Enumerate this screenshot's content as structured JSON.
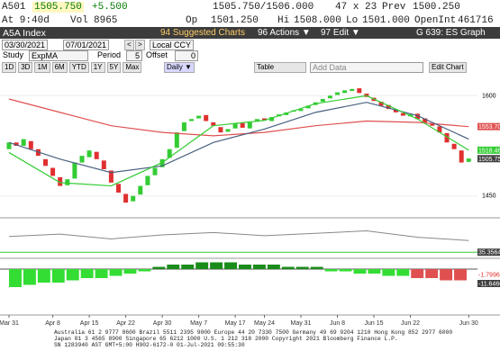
{
  "header": {
    "ticker": "A501",
    "last": "1505.750",
    "change": "+5.500",
    "vol_label": "Vol",
    "vol": "8965",
    "bid_ask": "1505.750/1506.000",
    "size": "47 x 23",
    "prev_label": "Prev",
    "prev": "1500.250",
    "time": "At 9:40d",
    "op_label": "Op",
    "op": "1501.250",
    "hi_label": "Hi",
    "hi": "1508.000",
    "lo_label": "Lo",
    "lo": "1501.000",
    "oi_label": "OpenInt",
    "oi": "461716"
  },
  "menu": {
    "security": "A5A Index",
    "suggested": "94 Suggested Charts",
    "actions": "96 Actions ▼",
    "edit": "97 Edit ▼",
    "graph": "G 639: ES Graph"
  },
  "controls": {
    "start": "03/30/2021",
    "end": "07/01/2021",
    "prev": "<",
    "next": ">",
    "currency": "Local CCY",
    "study_label": "Study",
    "study": "ExpMA",
    "period_label": "Period",
    "period": "5",
    "offset_label": "Offset",
    "offset": "0"
  },
  "toolbar": {
    "ranges": [
      "1D",
      "3D",
      "1M",
      "6M",
      "YTD",
      "1Y",
      "5Y",
      "Max"
    ],
    "frequency": "Daily ▼",
    "table": "Table",
    "add_data": "Add Data",
    "edit_chart": "Edit Chart"
  },
  "price_panel": {
    "ylim": [
      1420,
      1630
    ],
    "yticks": [
      1600,
      1450
    ],
    "open": [
      1520,
      1530,
      1525,
      1532,
      1520,
      1505,
      1492,
      1478,
      1466,
      1476,
      1500,
      1508,
      1516,
      1503,
      1488,
      1468,
      1453,
      1442,
      1452,
      1466,
      1481,
      1493,
      1507,
      1522,
      1547,
      1562,
      1566,
      1571,
      1560,
      1553,
      1546,
      1551,
      1559,
      1551,
      1561,
      1566,
      1562,
      1569,
      1571,
      1576,
      1577,
      1581,
      1586,
      1591,
      1596,
      1601,
      1604,
      1607,
      1611,
      1603,
      1597,
      1591,
      1586,
      1579,
      1574,
      1569,
      1573,
      1566,
      1559,
      1554,
      1544,
      1528,
      1518,
      1501
    ],
    "close": [
      1530,
      1525,
      1535,
      1520,
      1510,
      1495,
      1480,
      1465,
      1475,
      1500,
      1510,
      1518,
      1505,
      1490,
      1470,
      1455,
      1440,
      1450,
      1465,
      1480,
      1492,
      1505,
      1520,
      1545,
      1560,
      1565,
      1570,
      1562,
      1555,
      1545,
      1550,
      1558,
      1552,
      1560,
      1565,
      1563,
      1568,
      1572,
      1575,
      1578,
      1580,
      1585,
      1590,
      1595,
      1600,
      1605,
      1608,
      1610,
      1604,
      1598,
      1592,
      1585,
      1580,
      1575,
      1570,
      1572,
      1565,
      1560,
      1555,
      1545,
      1530,
      1520,
      1500,
      1506
    ],
    "up_color": "#33cc33",
    "down_color": "#e03030",
    "line_x": [
      0,
      7,
      14,
      21,
      28,
      35,
      42,
      49,
      56,
      63
    ],
    "lines": [
      {
        "color": "#e05050",
        "values": [
          1595,
          1575,
          1555,
          1545,
          1540,
          1545,
          1555,
          1562,
          1560,
          1553.7
        ]
      },
      {
        "color": "#4a6080",
        "values": [
          1530,
          1505,
          1485,
          1495,
          1530,
          1550,
          1575,
          1590,
          1570,
          1535
        ]
      },
      {
        "color": "#33cc33",
        "values": [
          1515,
          1470,
          1465,
          1500,
          1555,
          1563,
          1588,
          1600,
          1565,
          1518.46
        ]
      }
    ],
    "price_labels": [
      {
        "label": "1553.70",
        "value": 1553.7,
        "color": "#e05050"
      },
      {
        "label": "1518.46",
        "value": 1518.46,
        "color": "#33cc33"
      },
      {
        "label": "1505.75",
        "value": 1505.75,
        "color": "#404040"
      }
    ]
  },
  "oscillator": {
    "ylim": [
      30,
      75
    ],
    "x": [
      0,
      7,
      14,
      21,
      28,
      35,
      42,
      49,
      56,
      63
    ],
    "values": [
      55,
      58,
      52,
      57,
      60,
      56,
      59,
      62,
      54,
      50
    ],
    "level": 35.3564,
    "label": "35.3564"
  },
  "histogram": {
    "ylim": [
      -20,
      4
    ],
    "values": [
      -8,
      -7,
      -6,
      -6,
      -5,
      -4,
      -4,
      -3,
      -2,
      -1,
      1,
      2,
      2,
      3,
      3,
      3,
      2,
      2,
      2,
      1,
      1,
      1,
      -1,
      -1,
      -2,
      -2,
      -3,
      -3,
      -4,
      -4,
      -5,
      -5
    ],
    "labels": [
      "-1.7996",
      "-11.6466"
    ]
  },
  "x_labels": [
    {
      "index": 0,
      "label": "Mar 31"
    },
    {
      "index": 6,
      "label": "Apr 8"
    },
    {
      "index": 11,
      "label": "Apr 15"
    },
    {
      "index": 16,
      "label": "Apr 22"
    },
    {
      "index": 21,
      "label": "Apr 30"
    },
    {
      "index": 26,
      "label": "May 7"
    },
    {
      "index": 31,
      "label": "May 17"
    },
    {
      "index": 35,
      "label": "May 24"
    },
    {
      "index": 40,
      "label": "May 31"
    },
    {
      "index": 45,
      "label": "Jun 8"
    },
    {
      "index": 50,
      "label": "Jun 15"
    },
    {
      "index": 55,
      "label": "Jun 22"
    },
    {
      "index": 63,
      "label": "Jun 30"
    }
  ],
  "footer": [
    "Australia 61 2 9777 8600 Brazil 5511 2395 9000 Europe 44 20 7330 7500 Germany 49 69 9204 1210 Hong Kong 852 2977 6000",
    "Japan 81 3 4565 8900 Singapore 65 6212 1000 U.S. 1 212 318 2000 Copyright 2021 Bloomberg Finance L.P.",
    "SN 1283940 AST GMT+5:00 H902-6172-0 01-Jul-2021 09:55:30"
  ]
}
